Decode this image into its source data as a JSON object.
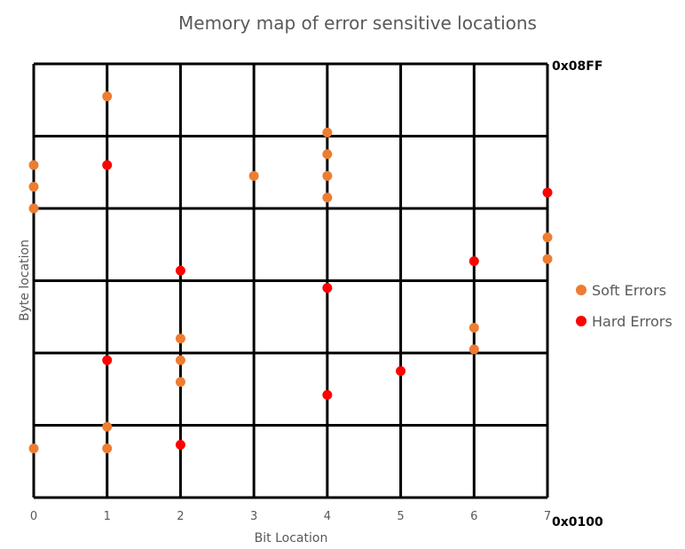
{
  "chart_data": {
    "type": "scatter",
    "title": "Memory map of error sensitive locations",
    "xlabel": "Bit Location",
    "ylabel": "Byte location",
    "x_ticks": [
      "0",
      "1",
      "2",
      "3",
      "4",
      "5",
      "6",
      "7"
    ],
    "xlim": [
      0,
      7
    ],
    "ylim": [
      0,
      6
    ],
    "y_top_label": "0x08FF",
    "y_bottom_label": "0x0100",
    "grid": true,
    "legend_position": "right",
    "series": [
      {
        "name": "Soft Errors",
        "color": "#ED7D31",
        "points": [
          {
            "x": 1,
            "y": 5.55
          },
          {
            "x": 4,
            "y": 5.05
          },
          {
            "x": 0,
            "y": 4.6
          },
          {
            "x": 4,
            "y": 4.75
          },
          {
            "x": 0,
            "y": 4.3
          },
          {
            "x": 3,
            "y": 4.45
          },
          {
            "x": 4,
            "y": 4.45
          },
          {
            "x": 0,
            "y": 4.0
          },
          {
            "x": 4,
            "y": 4.15
          },
          {
            "x": 7,
            "y": 3.6
          },
          {
            "x": 7,
            "y": 3.3
          },
          {
            "x": 6,
            "y": 2.35
          },
          {
            "x": 2,
            "y": 2.2
          },
          {
            "x": 6,
            "y": 2.05
          },
          {
            "x": 2,
            "y": 1.9
          },
          {
            "x": 2,
            "y": 1.6
          },
          {
            "x": 1,
            "y": 0.98
          },
          {
            "x": 0,
            "y": 0.68
          },
          {
            "x": 1,
            "y": 0.68
          }
        ]
      },
      {
        "name": "Hard Errors",
        "color": "#FF0000",
        "points": [
          {
            "x": 1,
            "y": 4.6
          },
          {
            "x": 7,
            "y": 4.22
          },
          {
            "x": 6,
            "y": 3.27
          },
          {
            "x": 2,
            "y": 3.14
          },
          {
            "x": 4,
            "y": 2.9
          },
          {
            "x": 1,
            "y": 1.9
          },
          {
            "x": 5,
            "y": 1.75
          },
          {
            "x": 4,
            "y": 1.42
          },
          {
            "x": 2,
            "y": 0.73
          }
        ]
      }
    ]
  }
}
